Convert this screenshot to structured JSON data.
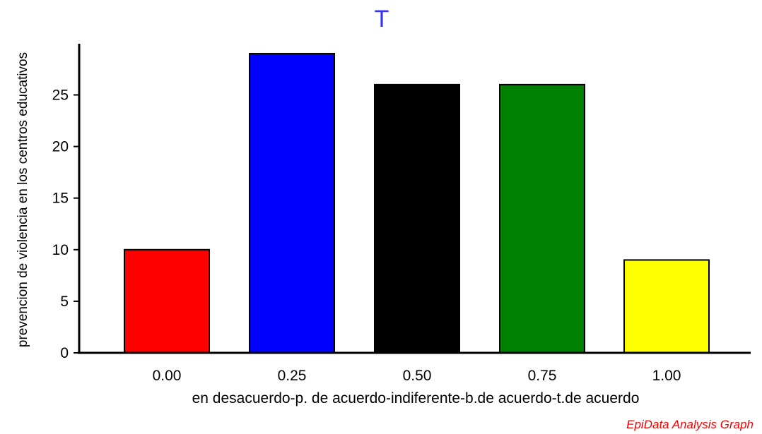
{
  "chart_data": {
    "type": "bar",
    "title": "T",
    "xlabel": "en desacuerdo-p. de acuerdo-indiferente-b.de acuerdo-t.de acuerdo",
    "ylabel": "prevencion de violencia en los centros educativos",
    "categories": [
      "0.00",
      "0.25",
      "0.50",
      "0.75",
      "1.00"
    ],
    "values": [
      10,
      29,
      26,
      26,
      9
    ],
    "colors": [
      "#ff0000",
      "#0000ff",
      "#000000",
      "#008000",
      "#ffff00"
    ],
    "yticks": [
      0,
      5,
      10,
      15,
      20,
      25
    ],
    "ylim": [
      0,
      29
    ],
    "grid": false,
    "legend": "none"
  },
  "footer": {
    "credit": "EpiData Analysis Graph"
  },
  "style": {
    "title_color": "#3333ff",
    "credit_color": "#ff0000"
  }
}
